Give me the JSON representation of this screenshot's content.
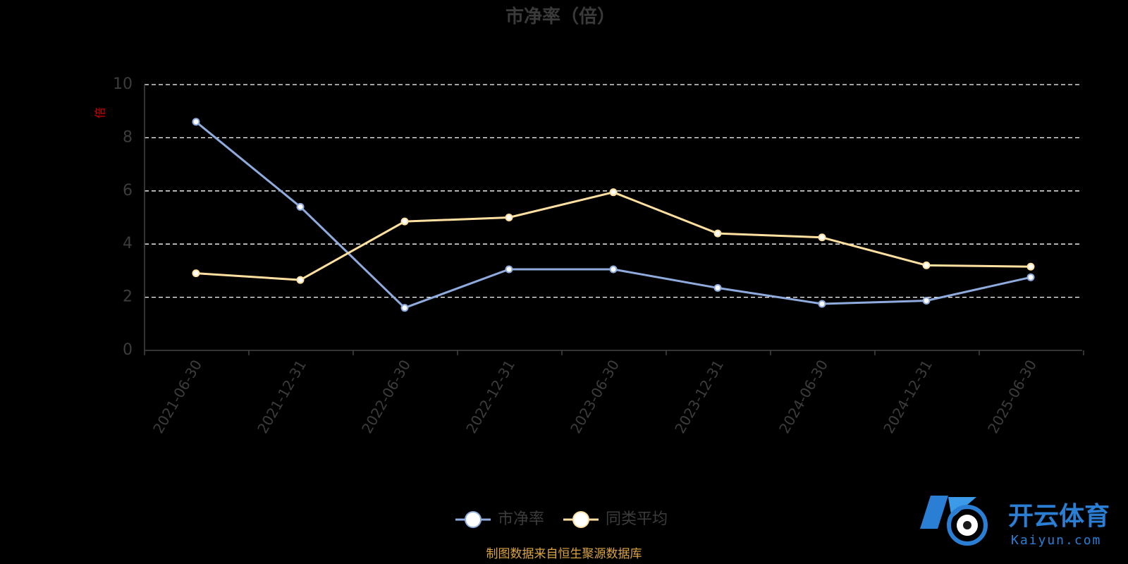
{
  "chart_data": {
    "type": "line",
    "title": "市净率（倍）",
    "unit_label": "倍",
    "categories": [
      "2021-06-30",
      "2021-12-31",
      "2022-06-30",
      "2022-12-31",
      "2023-06-30",
      "2023-12-31",
      "2024-06-30",
      "2024-12-31",
      "2025-06-30"
    ],
    "series": [
      {
        "name": "市净率",
        "color": "#8faadc",
        "values": [
          8.6,
          5.4,
          1.6,
          3.05,
          3.05,
          2.35,
          1.75,
          1.87,
          2.75
        ]
      },
      {
        "name": "同类平均",
        "color": "#ffe0a0",
        "values": [
          2.9,
          2.65,
          4.85,
          5.0,
          5.95,
          4.4,
          4.25,
          3.2,
          3.15
        ]
      }
    ],
    "ylim": [
      0,
      10
    ],
    "yticks": [
      0,
      2,
      4,
      6,
      8,
      10
    ],
    "grid": true,
    "legend_position": "bottom-center"
  },
  "source_note": "制图数据来自恒生聚源数据库",
  "watermark": {
    "name": "开云体育",
    "domain": "Kaiyun.com",
    "color": "#2a7fd4"
  }
}
